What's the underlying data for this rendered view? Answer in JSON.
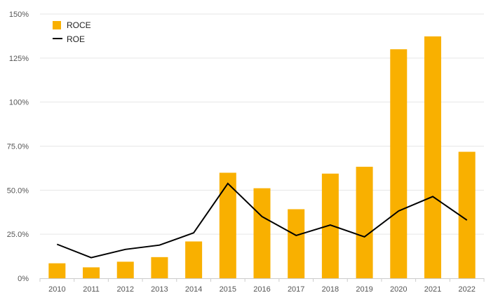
{
  "chart_data": {
    "type": "bar",
    "categories": [
      "2010",
      "2011",
      "2012",
      "2013",
      "2014",
      "2015",
      "2016",
      "2017",
      "2018",
      "2019",
      "2020",
      "2021",
      "2022"
    ],
    "series": [
      {
        "name": "ROCE",
        "type": "bar",
        "color": "#F9B000",
        "values": [
          8.5,
          6.2,
          9.4,
          12.0,
          20.9,
          59.9,
          51.1,
          39.2,
          59.4,
          63.3,
          130.0,
          137.3,
          71.8
        ]
      },
      {
        "name": "ROE",
        "type": "line",
        "color": "#000000",
        "values": [
          19.3,
          11.7,
          16.4,
          18.8,
          25.8,
          53.8,
          35.0,
          24.3,
          30.2,
          23.5,
          38.2,
          46.4,
          33.0
        ]
      }
    ],
    "yticks": [
      "0%",
      "25.0%",
      "50.0%",
      "75.0%",
      "100%",
      "125%",
      "150%"
    ],
    "ylim": [
      0,
      150
    ],
    "grid": true,
    "legend_position": "top-left",
    "gridline_color": "#e6e6e6"
  }
}
